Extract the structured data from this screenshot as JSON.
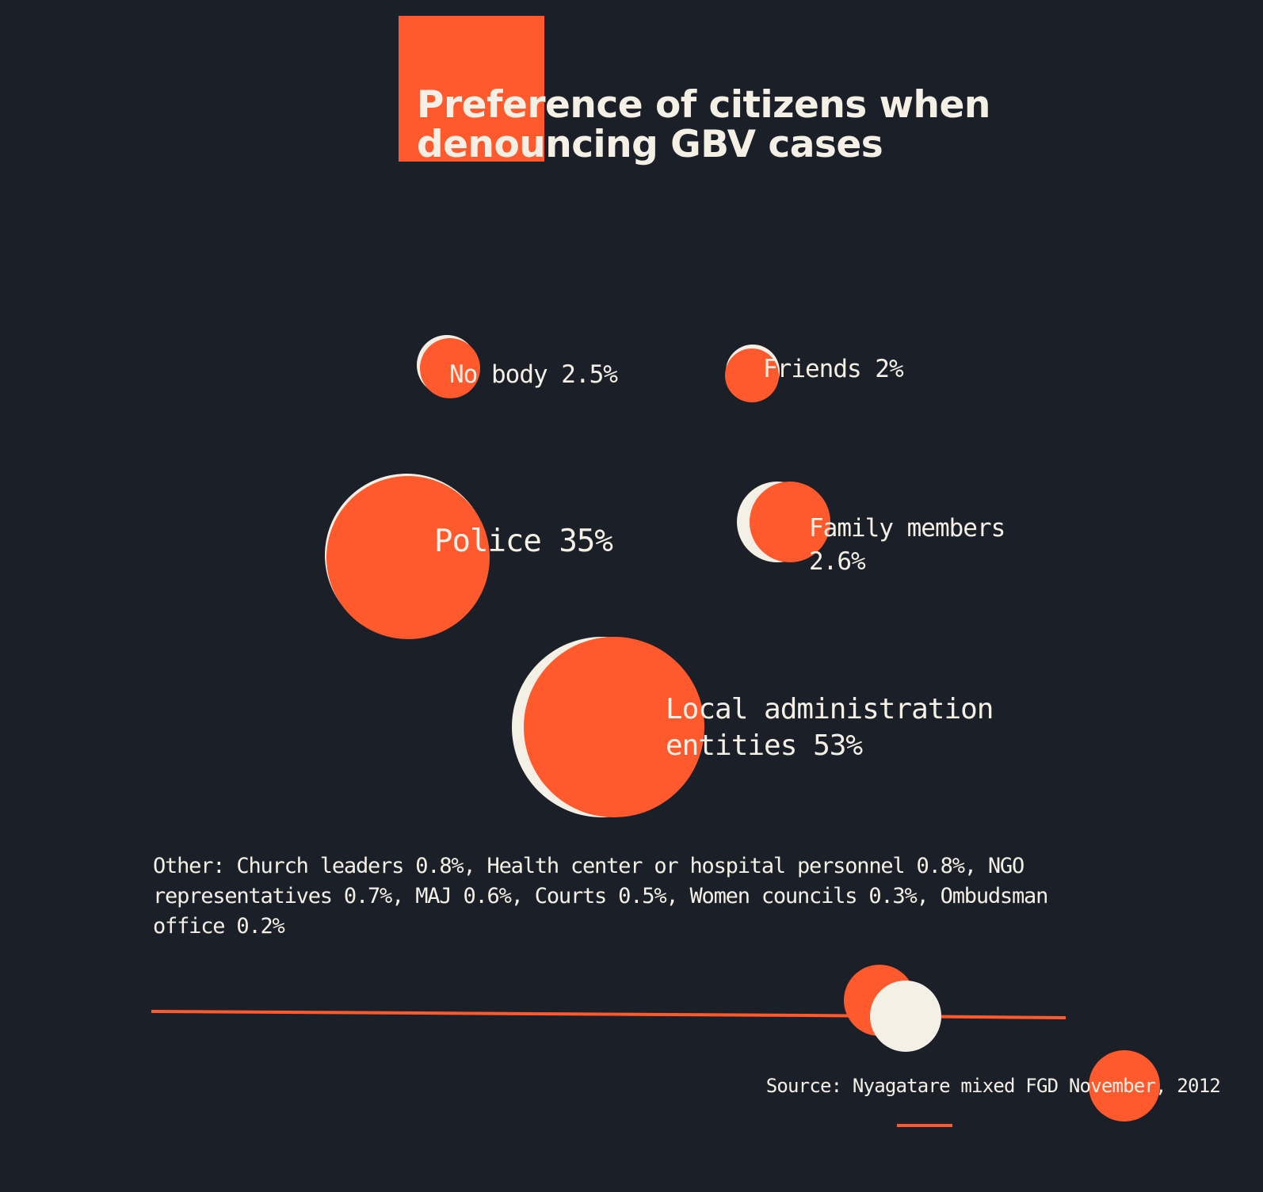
{
  "title_lines": [
    "Preference of citizens when",
    "denouncing GBV cases"
  ],
  "chart_data": {
    "type": "bubble",
    "title": "Preference of citizens when denouncing GBV cases",
    "unit": "%",
    "series": [
      {
        "category": "No body",
        "value": 2.5,
        "label_lines": [
          "No body 2.5%"
        ]
      },
      {
        "category": "Friends",
        "value": 2,
        "label_lines": [
          "Friends 2%"
        ]
      },
      {
        "category": "Police",
        "value": 35,
        "label_lines": [
          "Police 35%"
        ]
      },
      {
        "category": "Family members",
        "value": 2.6,
        "label_lines": [
          "Family members",
          "2.6%"
        ]
      },
      {
        "category": "Local administration entities",
        "value": 53,
        "label_lines": [
          "Local administration",
          "entities 53%"
        ]
      }
    ],
    "other": [
      {
        "category": "Church leaders",
        "value": 0.8
      },
      {
        "category": "Health center or hospital personnel",
        "value": 0.8
      },
      {
        "category": "NGO representatives",
        "value": 0.7
      },
      {
        "category": "MAJ",
        "value": 0.6
      },
      {
        "category": "Courts",
        "value": 0.5
      },
      {
        "category": "Women councils",
        "value": 0.3
      },
      {
        "category": "Ombudsman office",
        "value": 0.2
      }
    ]
  },
  "other_note": "Other: Church leaders 0.8%, Health center or hospital personnel 0.8%, NGO representatives 0.7%, MAJ 0.6%, Courts 0.5%, Women councils 0.3%, Ombudsman office 0.2%",
  "source": "Source: Nyagatare mixed FGD November, 2012",
  "colors": {
    "background": "#1b2028",
    "accent": "#ff5a2e",
    "cream": "#f5f0e6"
  }
}
